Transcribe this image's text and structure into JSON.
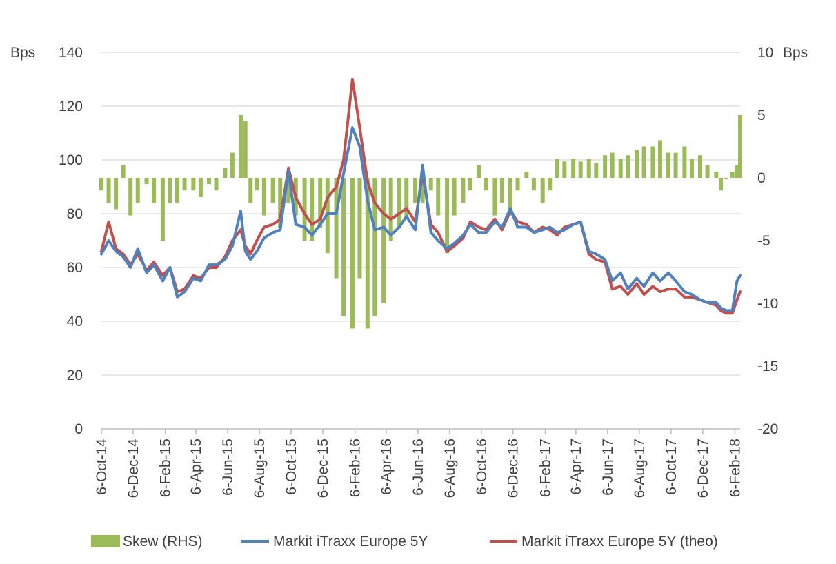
{
  "chart_data": {
    "type": "bar+line (dual axis)",
    "left_axis": {
      "unit_label": "Bps",
      "ylim": [
        0,
        140
      ],
      "ticks": [
        0,
        20,
        40,
        60,
        80,
        100,
        120,
        140
      ],
      "tick_labels": [
        "0",
        "20",
        "40",
        "60",
        "80",
        "100",
        "120",
        "140"
      ]
    },
    "right_axis": {
      "unit_label": "Bps",
      "ylim": [
        -20,
        10
      ],
      "ticks": [
        -20,
        -15,
        -10,
        -5,
        0,
        5,
        10
      ],
      "tick_labels": [
        "-20",
        "-15",
        "-10",
        "-5",
        "0",
        "5",
        "10"
      ]
    },
    "x_axis": {
      "start": "2014-10-06",
      "end": "2018-02-16",
      "tick_dates": [
        "2014-10-06",
        "2014-12-06",
        "2015-02-06",
        "2015-04-06",
        "2015-06-06",
        "2015-08-06",
        "2015-10-06",
        "2015-12-06",
        "2016-02-06",
        "2016-04-06",
        "2016-06-06",
        "2016-08-06",
        "2016-10-06",
        "2016-12-06",
        "2017-02-06",
        "2017-04-06",
        "2017-06-06",
        "2017-08-06",
        "2017-10-06",
        "2017-12-06",
        "2018-02-06"
      ],
      "tick_labels": [
        "6-Oct-14",
        "6-Dec-14",
        "6-Feb-15",
        "6-Apr-15",
        "6-Jun-15",
        "6-Aug-15",
        "6-Oct-15",
        "6-Dec-15",
        "6-Feb-16",
        "6-Apr-16",
        "6-Jun-16",
        "6-Aug-16",
        "6-Oct-16",
        "6-Dec-16",
        "6-Feb-17",
        "6-Apr-17",
        "6-Jun-17",
        "6-Aug-17",
        "6-Oct-17",
        "6-Dec-17",
        "6-Feb-18"
      ]
    },
    "grid": "horizontal",
    "legend_position": "bottom",
    "series": [
      {
        "name": "Skew (RHS)",
        "kind": "bar",
        "axis": "right",
        "color": "#9bbb59",
        "x": [
          "2014-10-06",
          "2014-10-20",
          "2014-11-03",
          "2014-11-17",
          "2014-12-01",
          "2014-12-15",
          "2015-01-01",
          "2015-01-15",
          "2015-02-01",
          "2015-02-15",
          "2015-03-01",
          "2015-03-15",
          "2015-04-01",
          "2015-04-15",
          "2015-05-01",
          "2015-05-15",
          "2015-06-01",
          "2015-06-15",
          "2015-07-01",
          "2015-07-10",
          "2015-07-20",
          "2015-08-01",
          "2015-08-15",
          "2015-09-01",
          "2015-09-15",
          "2015-10-01",
          "2015-10-15",
          "2015-11-01",
          "2015-11-15",
          "2015-12-01",
          "2015-12-15",
          "2016-01-01",
          "2016-01-15",
          "2016-02-01",
          "2016-02-15",
          "2016-03-01",
          "2016-03-15",
          "2016-04-01",
          "2016-04-15",
          "2016-05-01",
          "2016-05-15",
          "2016-06-01",
          "2016-06-15",
          "2016-07-01",
          "2016-07-15",
          "2016-08-01",
          "2016-08-15",
          "2016-09-01",
          "2016-09-15",
          "2016-10-01",
          "2016-10-15",
          "2016-11-01",
          "2016-11-15",
          "2016-12-01",
          "2016-12-15",
          "2017-01-01",
          "2017-01-15",
          "2017-02-01",
          "2017-02-15",
          "2017-03-01",
          "2017-03-15",
          "2017-04-01",
          "2017-04-15",
          "2017-05-01",
          "2017-05-15",
          "2017-06-01",
          "2017-06-15",
          "2017-07-01",
          "2017-07-15",
          "2017-08-01",
          "2017-08-15",
          "2017-09-01",
          "2017-09-15",
          "2017-10-01",
          "2017-10-15",
          "2017-11-01",
          "2017-11-15",
          "2017-12-01",
          "2017-12-15",
          "2018-01-01",
          "2018-01-10",
          "2018-01-20",
          "2018-02-01",
          "2018-02-10",
          "2018-02-16"
        ],
        "values": [
          -1,
          -2,
          -2.5,
          1,
          -3,
          -2,
          -0.5,
          -2,
          -5,
          -2,
          -2,
          -1,
          -1,
          -1.5,
          -0.5,
          -1,
          0.8,
          2,
          5,
          4.5,
          -2,
          -1,
          -3,
          -2,
          -4,
          -2,
          -3,
          -5,
          -5,
          -4,
          -6,
          -8,
          -11,
          -12,
          -8,
          -12,
          -11,
          -10,
          -5,
          -4,
          -3,
          -2,
          -2,
          -1,
          -3,
          -6,
          -3,
          -2,
          -1,
          1,
          -1,
          -3,
          -2,
          -3,
          -1,
          0.5,
          -1,
          -2,
          -1,
          1.5,
          1.3,
          1.5,
          1.3,
          1.5,
          1.2,
          1.8,
          2,
          1.5,
          1.8,
          2.2,
          2.5,
          2.5,
          3,
          2,
          2,
          2.5,
          1.5,
          1.8,
          1,
          0.5,
          -1,
          0,
          0.5,
          1,
          5
        ]
      },
      {
        "name": "Markit iTraxx Europe 5Y",
        "kind": "line",
        "axis": "left",
        "color": "#4f81bd",
        "x": [
          "2014-10-06",
          "2014-10-20",
          "2014-11-03",
          "2014-11-17",
          "2014-12-01",
          "2014-12-15",
          "2015-01-01",
          "2015-01-15",
          "2015-02-01",
          "2015-02-15",
          "2015-03-01",
          "2015-03-15",
          "2015-04-01",
          "2015-04-15",
          "2015-05-01",
          "2015-05-15",
          "2015-06-01",
          "2015-06-15",
          "2015-07-01",
          "2015-07-10",
          "2015-07-20",
          "2015-08-01",
          "2015-08-15",
          "2015-09-01",
          "2015-09-15",
          "2015-10-01",
          "2015-10-15",
          "2015-11-01",
          "2015-11-15",
          "2015-12-01",
          "2015-12-15",
          "2016-01-01",
          "2016-01-15",
          "2016-02-01",
          "2016-02-15",
          "2016-03-01",
          "2016-03-15",
          "2016-04-01",
          "2016-04-15",
          "2016-05-01",
          "2016-05-15",
          "2016-06-01",
          "2016-06-15",
          "2016-07-01",
          "2016-07-15",
          "2016-08-01",
          "2016-08-15",
          "2016-09-01",
          "2016-09-15",
          "2016-10-01",
          "2016-10-15",
          "2016-11-01",
          "2016-11-15",
          "2016-12-01",
          "2016-12-15",
          "2017-01-01",
          "2017-01-15",
          "2017-02-01",
          "2017-02-15",
          "2017-03-01",
          "2017-03-15",
          "2017-04-01",
          "2017-04-15",
          "2017-05-01",
          "2017-05-15",
          "2017-06-01",
          "2017-06-15",
          "2017-07-01",
          "2017-07-15",
          "2017-08-01",
          "2017-08-15",
          "2017-09-01",
          "2017-09-15",
          "2017-10-01",
          "2017-10-15",
          "2017-11-01",
          "2017-11-15",
          "2017-12-01",
          "2017-12-15",
          "2018-01-01",
          "2018-01-10",
          "2018-01-20",
          "2018-02-01",
          "2018-02-10",
          "2018-02-16"
        ],
        "values": [
          65,
          70,
          66,
          64,
          60,
          67,
          58,
          61,
          55,
          60,
          49,
          51,
          56,
          55,
          61,
          61,
          63,
          68,
          81,
          66,
          63,
          66,
          71,
          73,
          74,
          96,
          76,
          75,
          72,
          76,
          80,
          80,
          95,
          112,
          105,
          85,
          74,
          75,
          72,
          75,
          79,
          74,
          98,
          73,
          70,
          67,
          69,
          72,
          76,
          73,
          73,
          77,
          75,
          82,
          75,
          75,
          73,
          74,
          75,
          73,
          74,
          76,
          77,
          66,
          65,
          63,
          55,
          58,
          52,
          56,
          53,
          58,
          55,
          58,
          55,
          51,
          50,
          48,
          47,
          47,
          45,
          44,
          44,
          55,
          57
        ]
      },
      {
        "name": "Markit iTraxx Europe 5Y (theo)",
        "kind": "line",
        "axis": "left",
        "color": "#c0504d",
        "x": [
          "2014-10-06",
          "2014-10-20",
          "2014-11-03",
          "2014-11-17",
          "2014-12-01",
          "2014-12-15",
          "2015-01-01",
          "2015-01-15",
          "2015-02-01",
          "2015-02-15",
          "2015-03-01",
          "2015-03-15",
          "2015-04-01",
          "2015-04-15",
          "2015-05-01",
          "2015-05-15",
          "2015-06-01",
          "2015-06-15",
          "2015-07-01",
          "2015-07-10",
          "2015-07-20",
          "2015-08-01",
          "2015-08-15",
          "2015-09-01",
          "2015-09-15",
          "2015-10-01",
          "2015-10-15",
          "2015-11-01",
          "2015-11-15",
          "2015-12-01",
          "2015-12-15",
          "2016-01-01",
          "2016-01-15",
          "2016-02-01",
          "2016-02-15",
          "2016-03-01",
          "2016-03-15",
          "2016-04-01",
          "2016-04-15",
          "2016-05-01",
          "2016-05-15",
          "2016-06-01",
          "2016-06-15",
          "2016-07-01",
          "2016-07-15",
          "2016-08-01",
          "2016-08-15",
          "2016-09-01",
          "2016-09-15",
          "2016-10-01",
          "2016-10-15",
          "2016-11-01",
          "2016-11-15",
          "2016-12-01",
          "2016-12-15",
          "2017-01-01",
          "2017-01-15",
          "2017-02-01",
          "2017-02-15",
          "2017-03-01",
          "2017-03-15",
          "2017-04-01",
          "2017-04-15",
          "2017-05-01",
          "2017-05-15",
          "2017-06-01",
          "2017-06-15",
          "2017-07-01",
          "2017-07-15",
          "2017-08-01",
          "2017-08-15",
          "2017-09-01",
          "2017-09-15",
          "2017-10-01",
          "2017-10-15",
          "2017-11-01",
          "2017-11-15",
          "2017-12-01",
          "2017-12-15",
          "2018-01-01",
          "2018-01-10",
          "2018-01-20",
          "2018-02-01",
          "2018-02-10",
          "2018-02-16"
        ],
        "values": [
          66,
          77,
          67,
          65,
          61,
          65,
          59,
          62,
          57,
          60,
          51,
          52,
          57,
          56,
          60,
          60,
          64,
          70,
          74,
          68,
          65,
          70,
          75,
          76,
          78,
          97,
          86,
          80,
          76,
          78,
          86,
          90,
          100,
          130,
          112,
          92,
          84,
          80,
          78,
          80,
          82,
          77,
          95,
          76,
          73,
          66,
          68,
          71,
          77,
          75,
          74,
          78,
          74,
          81,
          77,
          76,
          73,
          75,
          74,
          72,
          75,
          76,
          77,
          65,
          63,
          62,
          52,
          53,
          50,
          54,
          50,
          53,
          51,
          52,
          52,
          49,
          49,
          48,
          47,
          46,
          44,
          43,
          43,
          48,
          51
        ]
      }
    ]
  }
}
